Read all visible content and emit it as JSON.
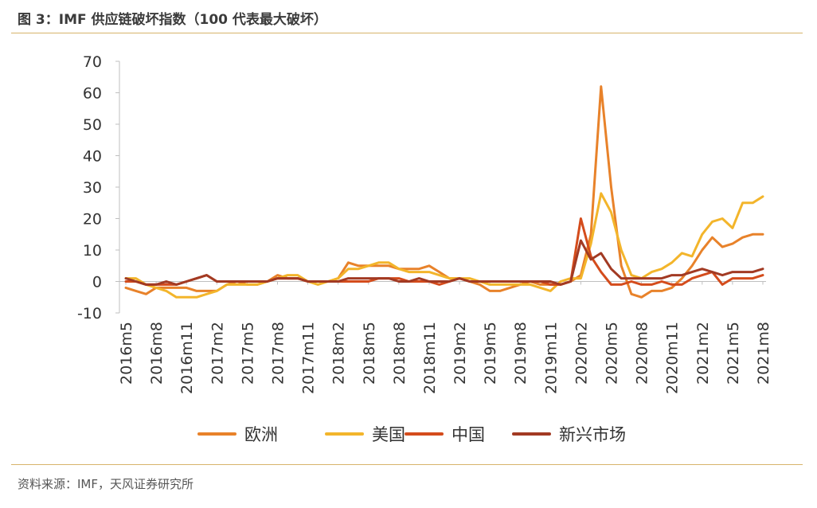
{
  "header": {
    "title": "图 3：IMF 供应链破坏指数（100 代表最大破坏）"
  },
  "footer": {
    "source": "资料来源：IMF，天风证券研究所"
  },
  "chart_data": {
    "type": "line",
    "title": "图 3：IMF 供应链破坏指数（100 代表最大破坏）",
    "xlabel": "",
    "ylabel": "",
    "ylim": [
      -10,
      70
    ],
    "yticks": [
      -10,
      0,
      10,
      20,
      30,
      40,
      50,
      60,
      70
    ],
    "grid": false,
    "legend": "bottom",
    "x": [
      "2016m5",
      "2016m6",
      "2016m7",
      "2016m8",
      "2016m9",
      "2016m10",
      "2016m11",
      "2016m12",
      "2017m1",
      "2017m2",
      "2017m3",
      "2017m4",
      "2017m5",
      "2017m6",
      "2017m7",
      "2017m8",
      "2017m9",
      "2017m10",
      "2017m11",
      "2017m12",
      "2018m1",
      "2018m2",
      "2018m3",
      "2018m4",
      "2018m5",
      "2018m6",
      "2018m7",
      "2018m8",
      "2018m9",
      "2018m10",
      "2018m11",
      "2018m12",
      "2019m1",
      "2019m2",
      "2019m3",
      "2019m4",
      "2019m5",
      "2019m6",
      "2019m7",
      "2019m8",
      "2019m9",
      "2019m10",
      "2019m11",
      "2019m12",
      "2020m1",
      "2020m2",
      "2020m3",
      "2020m4",
      "2020m5",
      "2020m6",
      "2020m7",
      "2020m8",
      "2020m9",
      "2020m10",
      "2020m11",
      "2020m12",
      "2021m1",
      "2021m2",
      "2021m3",
      "2021m4",
      "2021m5",
      "2021m6",
      "2021m7",
      "2021m8"
    ],
    "tick_labels": [
      "2016m5",
      "2016m8",
      "2016m11",
      "2017m2",
      "2017m5",
      "2017m8",
      "2017m11",
      "2018m2",
      "2018m5",
      "2018m8",
      "2018m11",
      "2019m2",
      "2019m5",
      "2019m8",
      "2019m11",
      "2020m2",
      "2020m5",
      "2020m8",
      "2020m11",
      "2021m2",
      "2021m5",
      "2021m8"
    ],
    "series": [
      {
        "name": "欧洲",
        "color": "#e8822a",
        "values": [
          -2,
          -3,
          -4,
          -2,
          -2,
          -2,
          -2,
          -3,
          -3,
          -3,
          -1,
          0,
          -1,
          -1,
          0,
          2,
          1,
          1,
          0,
          0,
          0,
          1,
          6,
          5,
          5,
          5,
          5,
          4,
          4,
          4,
          5,
          3,
          1,
          1,
          0,
          -1,
          -3,
          -3,
          -2,
          -1,
          0,
          -1,
          -1,
          -1,
          0,
          2,
          15,
          62,
          30,
          5,
          -4,
          -5,
          -3,
          -3,
          -2,
          1,
          5,
          10,
          14,
          11,
          12,
          14,
          15,
          15
        ]
      },
      {
        "name": "美国",
        "color": "#f3b52b",
        "values": [
          1,
          1,
          -1,
          -2,
          -3,
          -5,
          -5,
          -5,
          -4,
          -3,
          -1,
          -1,
          -1,
          -1,
          0,
          1,
          2,
          2,
          0,
          -1,
          0,
          1,
          4,
          4,
          5,
          6,
          6,
          4,
          3,
          3,
          3,
          2,
          1,
          1,
          1,
          0,
          -1,
          -1,
          -1,
          -1,
          -1,
          -2,
          -3,
          0,
          1,
          1,
          12,
          28,
          22,
          10,
          2,
          1,
          3,
          4,
          6,
          9,
          8,
          15,
          19,
          20,
          17,
          25,
          25,
          27
        ]
      },
      {
        "name": "中国",
        "color": "#d44c1c",
        "values": [
          0,
          0,
          -1,
          -1,
          -1,
          -1,
          0,
          1,
          2,
          0,
          0,
          0,
          0,
          0,
          0,
          1,
          1,
          1,
          0,
          0,
          0,
          0,
          0,
          0,
          0,
          1,
          1,
          1,
          0,
          0,
          0,
          -1,
          0,
          1,
          0,
          0,
          0,
          0,
          0,
          0,
          0,
          0,
          -1,
          -1,
          0,
          20,
          8,
          3,
          -1,
          -1,
          0,
          -1,
          -1,
          0,
          -1,
          -1,
          1,
          2,
          3,
          -1,
          1,
          1,
          1,
          2
        ]
      },
      {
        "name": "新兴市场",
        "color": "#a23a23",
        "values": [
          1,
          0,
          -1,
          -1,
          0,
          -1,
          0,
          1,
          2,
          0,
          0,
          0,
          0,
          0,
          0,
          1,
          1,
          1,
          0,
          0,
          0,
          0,
          1,
          1,
          1,
          1,
          1,
          0,
          0,
          1,
          0,
          0,
          0,
          1,
          0,
          0,
          0,
          0,
          0,
          0,
          0,
          0,
          0,
          -1,
          0,
          13,
          7,
          9,
          4,
          1,
          1,
          1,
          1,
          1,
          2,
          2,
          3,
          4,
          3,
          2,
          3,
          3,
          3,
          4
        ]
      }
    ]
  }
}
